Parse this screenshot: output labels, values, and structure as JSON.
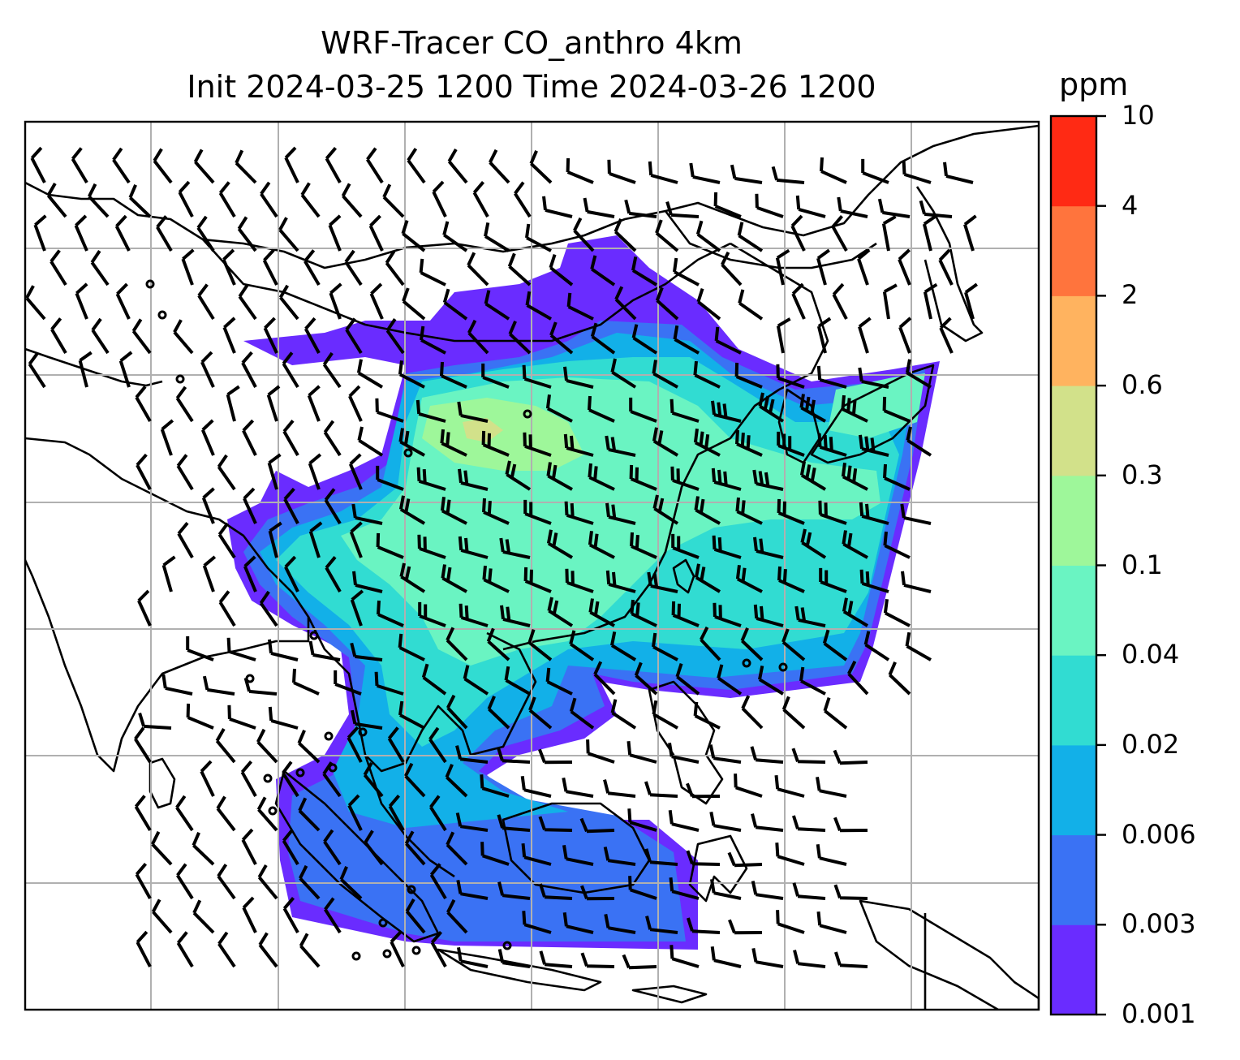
{
  "title_line1": "WRF-Tracer CO_anthro 4km",
  "title_line2": "Init 2024-03-25 1200 Time 2024-03-26 1200",
  "colorbar": {
    "unit": "ppm",
    "ticks": [
      "0.001",
      "0.003",
      "0.006",
      "0.02",
      "0.04",
      "0.1",
      "0.3",
      "0.6",
      "2",
      "4",
      "10"
    ],
    "colors": [
      "#6a2cff",
      "#3a72f4",
      "#12b0e8",
      "#31dcd2",
      "#6af4c2",
      "#9ef79a",
      "#d2e18a",
      "#ffb35f",
      "#ff743d",
      "#ff2a14"
    ]
  },
  "map": {
    "projection_note": "",
    "gridlines": true,
    "wind_barbs": true,
    "calm_circles": true
  }
}
